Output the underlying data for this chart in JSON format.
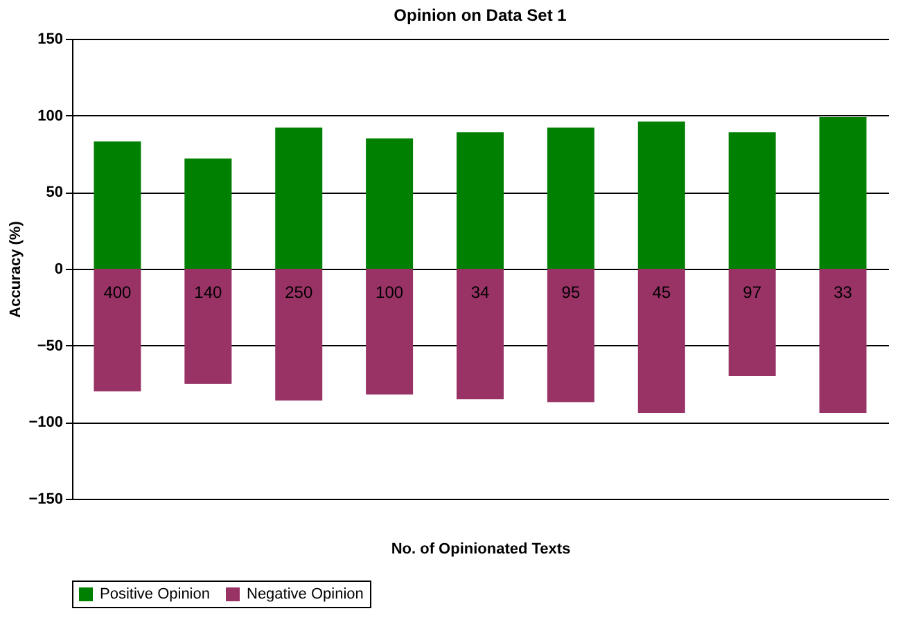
{
  "chart_data": {
    "type": "bar",
    "title": "Opinion on Data Set 1",
    "xlabel": "No. of Opinionated Texts",
    "ylabel": "Accuracy (%)",
    "categories": [
      "400",
      "140",
      "250",
      "100",
      "34",
      "95",
      "45",
      "97",
      "33"
    ],
    "series": [
      {
        "name": "Positive Opinion",
        "color": "#008000",
        "values": [
          83,
          72,
          92,
          85,
          89,
          92,
          96,
          89,
          99
        ]
      },
      {
        "name": "Negative Opinion",
        "color": "#993366",
        "values": [
          -80,
          -75,
          -86,
          -82,
          -85,
          -87,
          -94,
          -70,
          -94
        ]
      }
    ],
    "stacked": true,
    "ylim": [
      -150,
      150
    ],
    "yticks": [
      -150,
      -100,
      -50,
      0,
      50,
      100,
      150
    ],
    "grid": "y",
    "legend": "bottom"
  }
}
